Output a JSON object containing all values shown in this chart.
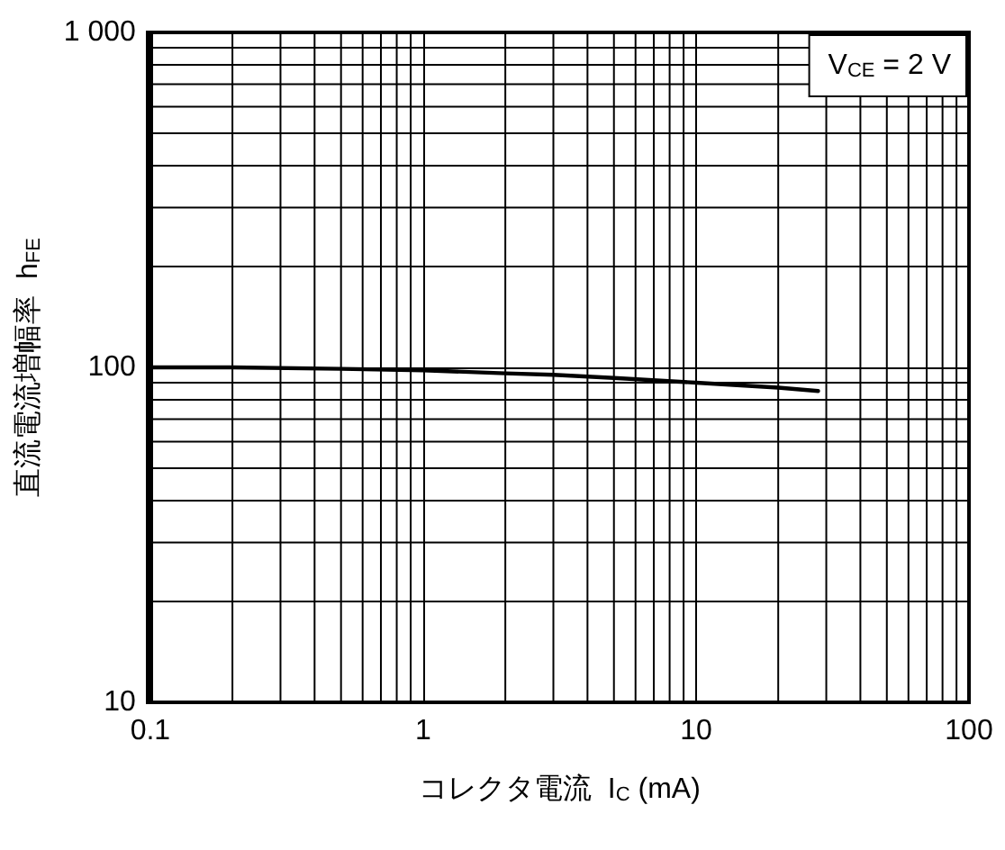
{
  "chart_data": {
    "type": "line",
    "xlabel": "コレクタ電流  I$_{C}$ (mA)",
    "ylabel": "直流電流増幅率  h$_{FE}$",
    "annotations": [
      "V$_{CE}$ = 2 V"
    ],
    "log": "xy",
    "grid": true,
    "marker": "none",
    "line_style": "solid",
    "xlim": [
      0.1,
      100
    ],
    "xticks": [
      0.1,
      1,
      10,
      100
    ],
    "ylim": [
      10,
      1000
    ],
    "yticks": [
      10,
      100,
      {
        "value": 1000,
        "label": "1 000"
      }
    ],
    "series": [
      {
        "color": "#000000",
        "x": [
          0.1,
          0.2,
          0.5,
          1,
          2,
          3,
          5,
          10,
          20,
          28
        ],
        "values": [
          100,
          100,
          99,
          98,
          96,
          95,
          93,
          90,
          87,
          85
        ]
      }
    ]
  }
}
